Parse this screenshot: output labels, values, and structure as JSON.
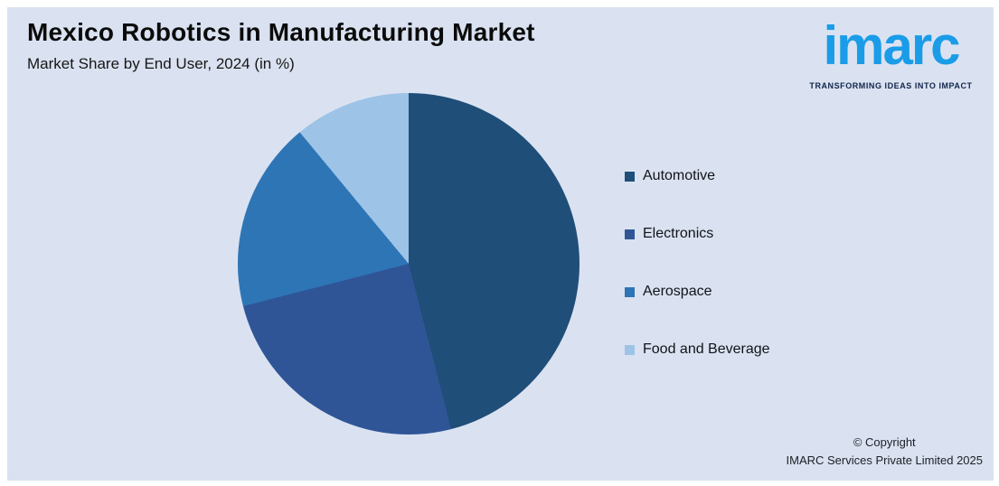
{
  "header": {
    "title": "Mexico Robotics in Manufacturing Market",
    "subtitle": "Market Share by End User, 2024 (in %)"
  },
  "logo": {
    "text": "imarc",
    "tagline": "TRANSFORMING IDEAS INTO IMPACT",
    "brand_color": "#1a9ce8",
    "tagline_color": "#10254a"
  },
  "chart_data": {
    "type": "pie",
    "title": "Mexico Robotics in Manufacturing Market",
    "subtitle": "Market Share by End User, 2024 (in %)",
    "unit": "%",
    "categories": [
      "Automotive",
      "Electronics",
      "Aerospace",
      "Food and Beverage"
    ],
    "values": [
      46,
      25,
      18,
      11
    ],
    "colors": [
      "#1f4e79",
      "#2f5597",
      "#2e75b6",
      "#9dc3e6"
    ],
    "start_angle_deg": 0,
    "direction": "clockwise",
    "legend_position": "right",
    "data_labels": false,
    "background": "#dae2f1"
  },
  "footer": {
    "line1": "© Copyright",
    "line2": "IMARC Services Private Limited 2025"
  }
}
